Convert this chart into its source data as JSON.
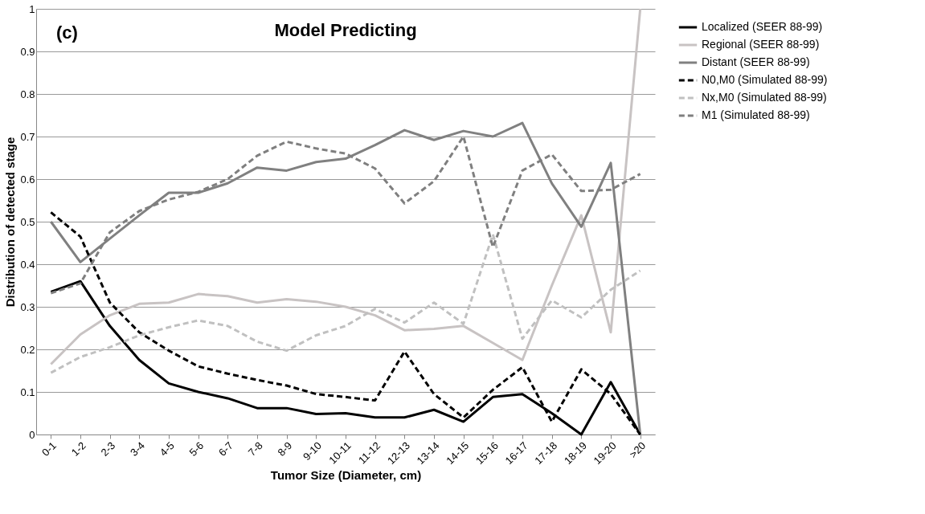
{
  "chart_data": {
    "type": "line",
    "title": "Model Predicting",
    "xlabel": "Tumor Size (Diameter, cm)",
    "ylabel": "Distribution of detected stage",
    "annotations": [
      "(c)"
    ],
    "categories": [
      "0-1",
      "1-2",
      "2-3",
      "3-4",
      "4-5",
      "5-6",
      "6-7",
      "7-8",
      "8-9",
      "9-10",
      "10-11",
      "11-12",
      "12-13",
      "13-14",
      "14-15",
      "15-16",
      "16-17",
      "17-18",
      "18-19",
      "19-20",
      ">20"
    ],
    "series": [
      {
        "name": "Localized (SEER 88-99)",
        "color": "#000000",
        "line_style": "solid",
        "values": [
          0.335,
          0.36,
          0.255,
          0.175,
          0.12,
          0.1,
          0.085,
          0.062,
          0.062,
          0.048,
          0.05,
          0.04,
          0.04,
          0.058,
          0.03,
          0.088,
          0.095,
          0.05,
          0.0,
          0.123,
          0.0
        ]
      },
      {
        "name": "Regional  (SEER 88-99)",
        "color": "#c8c3c3",
        "line_style": "solid",
        "values": [
          0.165,
          0.235,
          0.28,
          0.307,
          0.31,
          0.33,
          0.325,
          0.31,
          0.318,
          0.312,
          0.3,
          0.28,
          0.245,
          0.248,
          0.255,
          0.215,
          0.175,
          0.35,
          0.515,
          0.24,
          1.0
        ]
      },
      {
        "name": "Distant (SEER 88-99)",
        "color": "#808080",
        "line_style": "solid",
        "values": [
          0.5,
          0.405,
          0.46,
          0.515,
          0.568,
          0.568,
          0.59,
          0.627,
          0.62,
          0.64,
          0.648,
          0.68,
          0.715,
          0.692,
          0.713,
          0.7,
          0.732,
          0.59,
          0.488,
          0.638,
          0.0
        ]
      },
      {
        "name": "N0,M0 (Simulated 88-99)",
        "color": "#000000",
        "line_style": "dashed",
        "values": [
          0.522,
          0.465,
          0.31,
          0.24,
          0.197,
          0.16,
          0.143,
          0.128,
          0.115,
          0.095,
          0.088,
          0.08,
          0.195,
          0.095,
          0.04,
          0.105,
          0.158,
          0.03,
          0.153,
          0.095,
          0.0
        ]
      },
      {
        "name": "Nx,M0 (Simulated 88-99)",
        "color": "#c0c0c0",
        "line_style": "dashed",
        "values": [
          0.145,
          0.182,
          0.205,
          0.233,
          0.252,
          0.268,
          0.255,
          0.218,
          0.197,
          0.233,
          0.255,
          0.295,
          0.263,
          0.31,
          0.26,
          0.47,
          0.225,
          0.315,
          0.275,
          0.34,
          0.385
        ]
      },
      {
        "name": "M1  (Simulated 88-99)",
        "color": "#7f7f7f",
        "line_style": "dashed",
        "values": [
          0.332,
          0.355,
          0.475,
          0.525,
          0.552,
          0.57,
          0.6,
          0.655,
          0.688,
          0.672,
          0.66,
          0.625,
          0.543,
          0.595,
          0.7,
          0.44,
          0.62,
          0.658,
          0.572,
          0.575,
          0.612
        ]
      }
    ],
    "ylim": [
      0,
      1
    ],
    "yticks": [
      0,
      0.1,
      0.2,
      0.3,
      0.4,
      0.5,
      0.6,
      0.7,
      0.8,
      0.9,
      1
    ],
    "grid": "y",
    "legend": "right",
    "marker": "none"
  }
}
